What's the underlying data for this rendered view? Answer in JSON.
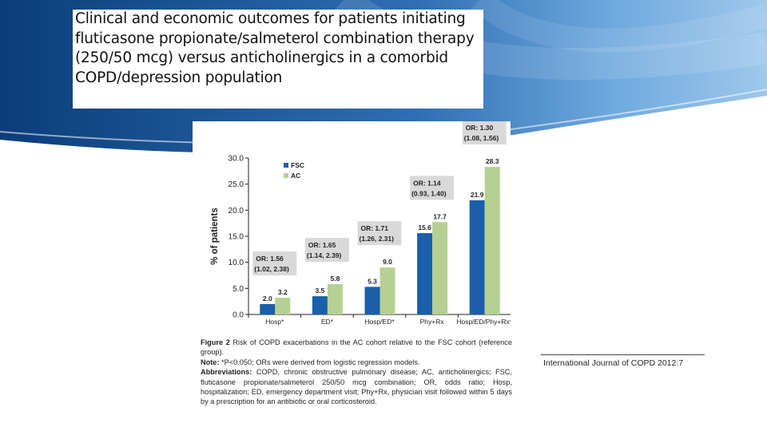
{
  "slide": {
    "title": "Clinical and economic outcomes for patients initiating fluticasone propionate/salmeterol combination therapy (250/50 mcg) versus anticholinergics in a comorbid COPD/depression population",
    "colors": {
      "banner_dark": "#0b3d7a",
      "banner_light": "#5fa0d8",
      "fsc": "#1a5fa8",
      "ac": "#b5d093",
      "or_box": "#d9d9d9"
    }
  },
  "chart_data": {
    "type": "bar",
    "ylabel": "% of patients",
    "xlabel": "",
    "ylim": [
      0,
      30
    ],
    "yticks": [
      "0.0",
      "5.0",
      "10.0",
      "15.0",
      "20.0",
      "25.0",
      "30.0"
    ],
    "categories": [
      "Hosp*",
      "ED*",
      "Hosp/ED*",
      "Phy+Rx",
      "Hosp/ED/Phy+Rx*"
    ],
    "series": [
      {
        "name": "FSC",
        "values": [
          2.0,
          3.5,
          5.3,
          15.6,
          21.9
        ],
        "labels": [
          "2.0",
          "3.5",
          "5.3",
          "15.6",
          "21.9"
        ]
      },
      {
        "name": "AC",
        "values": [
          3.2,
          5.8,
          9.0,
          17.7,
          28.3
        ],
        "labels": [
          "3.2",
          "5.8",
          "9.0",
          "17.7",
          "28.3"
        ]
      }
    ],
    "odds_ratios": [
      {
        "or": "OR: 1.56",
        "ci": "(1.02, 2.38)"
      },
      {
        "or": "OR: 1.65",
        "ci": "(1.14, 2.39)"
      },
      {
        "or": "OR: 1.71",
        "ci": "(1.26, 2.31)"
      },
      {
        "or": "OR: 1.14",
        "ci": "(0.93, 1.40)"
      },
      {
        "or": "OR: 1.30",
        "ci": "(1.08, 1.56)"
      }
    ],
    "legend_position": "top-left"
  },
  "caption": {
    "figure_label": "Figure 2",
    "figure_text": "Risk of COPD exacerbations in the AC cohort relative to the FSC cohort (reference group).",
    "note_label": "Note:",
    "note_text": "*P<0.050; ORs were derived from logistic regression models.",
    "abbrev_label": "Abbreviations:",
    "abbrev_text": "COPD, chronic obstructive pulmonary disease; AC, anticholinergics; FSC, fluticasone propionate/salmeterol 250/50 mcg combination; OR, odds ratio; Hosp, hospitalization; ED, emergency department visit; Phy+Rx, physician visit followed within 5 days by a prescription for an antibiotic or oral corticosteroid."
  },
  "journal": "International Journal of COPD 2012:7"
}
